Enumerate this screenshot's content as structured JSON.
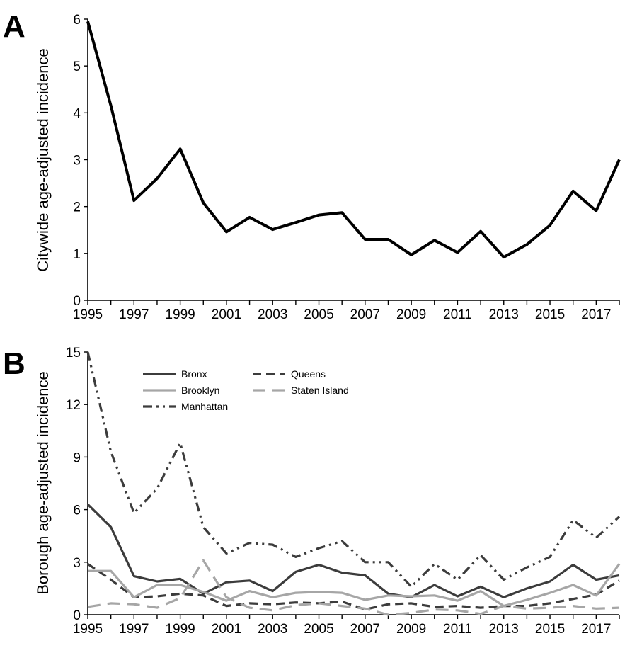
{
  "chart_data": [
    {
      "panel": "A",
      "type": "line",
      "title": "",
      "xlabel": "",
      "ylabel": "Citywide age-adjusted incidence",
      "ylim": [
        0,
        6
      ],
      "yticks": [
        0,
        1,
        2,
        3,
        4,
        5,
        6
      ],
      "xlim": [
        1995,
        2018
      ],
      "xticks": [
        1995,
        1997,
        1999,
        2001,
        2003,
        2005,
        2007,
        2009,
        2011,
        2013,
        2015,
        2017
      ],
      "x": [
        1995,
        1996,
        1997,
        1998,
        1999,
        2000,
        2001,
        2002,
        2003,
        2004,
        2005,
        2006,
        2007,
        2008,
        2009,
        2010,
        2011,
        2012,
        2013,
        2014,
        2015,
        2016,
        2017,
        2018
      ],
      "series": [
        {
          "color": "#000000",
          "dash": "solid",
          "values": [
            5.95,
            4.15,
            2.13,
            2.6,
            3.23,
            2.08,
            1.46,
            1.77,
            1.51,
            1.66,
            1.82,
            1.87,
            1.3,
            1.3,
            0.97,
            1.28,
            1.02,
            1.47,
            0.92,
            1.19,
            1.6,
            2.33,
            1.91,
            3.0
          ]
        }
      ]
    },
    {
      "panel": "B",
      "type": "line",
      "title": "",
      "xlabel": "",
      "ylabel": "Borough age-adjusted incidence",
      "ylim": [
        0,
        15
      ],
      "yticks": [
        0,
        3,
        6,
        9,
        12,
        15
      ],
      "xlim": [
        1995,
        2018
      ],
      "xticks": [
        1995,
        1997,
        1999,
        2001,
        2003,
        2005,
        2007,
        2009,
        2011,
        2013,
        2015,
        2017
      ],
      "x": [
        1995,
        1996,
        1997,
        1998,
        1999,
        2000,
        2001,
        2002,
        2003,
        2004,
        2005,
        2006,
        2007,
        2008,
        2009,
        2010,
        2011,
        2012,
        2013,
        2014,
        2015,
        2016,
        2017,
        2018
      ],
      "legend_position": "top-left",
      "series": [
        {
          "name": "Bronx",
          "color": "#3c3c3c",
          "dash": "solid",
          "values": [
            6.3,
            5.0,
            2.2,
            1.9,
            2.05,
            1.2,
            1.85,
            1.95,
            1.35,
            2.45,
            2.85,
            2.4,
            2.25,
            1.2,
            1.0,
            1.7,
            1.05,
            1.6,
            1.0,
            1.5,
            1.9,
            2.85,
            2.0,
            2.25
          ]
        },
        {
          "name": "Queens",
          "color": "#3c3c3c",
          "dash": "dash",
          "values": [
            2.9,
            2.0,
            1.0,
            1.05,
            1.2,
            1.1,
            0.5,
            0.65,
            0.6,
            0.7,
            0.65,
            0.75,
            0.3,
            0.6,
            0.65,
            0.45,
            0.5,
            0.4,
            0.5,
            0.5,
            0.65,
            0.9,
            1.15,
            1.95
          ]
        },
        {
          "name": "Brooklyn",
          "color": "#a6a6a6",
          "dash": "solid",
          "values": [
            2.5,
            2.5,
            1.0,
            1.7,
            1.7,
            1.3,
            0.8,
            1.35,
            1.0,
            1.25,
            1.3,
            1.25,
            0.85,
            1.1,
            1.05,
            1.1,
            0.8,
            1.35,
            0.5,
            0.85,
            1.25,
            1.7,
            1.1,
            2.9
          ]
        },
        {
          "name": "Staten Island",
          "color": "#a6a6a6",
          "dash": "longdash",
          "values": [
            0.45,
            0.65,
            0.6,
            0.4,
            0.95,
            3.1,
            1.0,
            0.4,
            0.25,
            0.55,
            0.65,
            0.5,
            0.35,
            0.0,
            0.1,
            0.3,
            0.25,
            0.05,
            0.5,
            0.35,
            0.4,
            0.5,
            0.35,
            0.4
          ]
        },
        {
          "name": "Manhattan",
          "color": "#3c3c3c",
          "dash": "dashdotdot",
          "values": [
            15.0,
            9.3,
            5.8,
            7.2,
            9.8,
            5.0,
            3.5,
            4.1,
            4.0,
            3.3,
            3.8,
            4.2,
            3.0,
            3.0,
            1.6,
            2.9,
            2.0,
            3.4,
            2.0,
            2.7,
            3.3,
            5.4,
            4.4,
            5.6
          ]
        }
      ]
    }
  ]
}
